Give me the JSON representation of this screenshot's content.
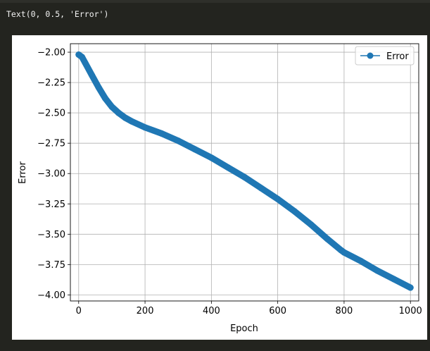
{
  "cell_output": {
    "text": "Text(0, 0.5, 'Error')"
  },
  "chart_data": {
    "type": "line",
    "xlabel": "Epoch",
    "ylabel": "Error",
    "xlim": [
      -25,
      1025
    ],
    "ylim": [
      -4.05,
      -1.93
    ],
    "xticks": [
      0,
      200,
      400,
      600,
      800,
      1000
    ],
    "xtick_labels": [
      "0",
      "200",
      "400",
      "600",
      "800",
      "1000"
    ],
    "yticks": [
      -2.0,
      -2.25,
      -2.5,
      -2.75,
      -3.0,
      -3.25,
      -3.5,
      -3.75,
      -4.0
    ],
    "ytick_labels": [
      "−2.00",
      "−2.25",
      "−2.50",
      "−2.75",
      "−3.00",
      "−3.25",
      "−3.50",
      "−3.75",
      "−4.00"
    ],
    "grid": true,
    "legend": {
      "position": "top-right",
      "entries": [
        "Error"
      ]
    },
    "series": [
      {
        "name": "Error",
        "color": "#1f77b4",
        "marker": "circle",
        "x": [
          0,
          10,
          20,
          40,
          60,
          80,
          100,
          120,
          140,
          160,
          200,
          250,
          300,
          350,
          400,
          450,
          500,
          550,
          600,
          650,
          700,
          750,
          790,
          800,
          850,
          900,
          950,
          1000
        ],
        "y": [
          -2.02,
          -2.04,
          -2.09,
          -2.19,
          -2.29,
          -2.38,
          -2.45,
          -2.5,
          -2.54,
          -2.57,
          -2.62,
          -2.67,
          -2.73,
          -2.8,
          -2.87,
          -2.95,
          -3.03,
          -3.12,
          -3.21,
          -3.31,
          -3.42,
          -3.54,
          -3.63,
          -3.65,
          -3.72,
          -3.8,
          -3.87,
          -3.94
        ]
      }
    ]
  }
}
